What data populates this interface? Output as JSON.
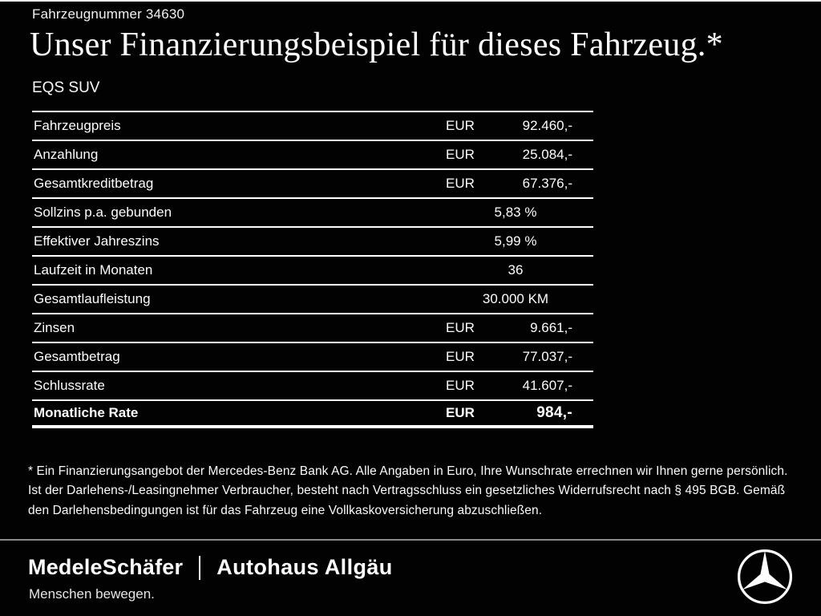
{
  "page": {
    "vehicle_number": "Fahrzeugnummer 34630",
    "title": "Unser Finanzierungsbeispiel für dieses Fahrzeug.*",
    "model": "EQS SUV"
  },
  "table": {
    "rows": [
      {
        "label": "Fahrzeugpreis",
        "currency": "EUR",
        "value": "92.460,-",
        "bold": false
      },
      {
        "label": "Anzahlung",
        "currency": "EUR",
        "value": "25.084,-",
        "bold": false
      },
      {
        "label": "Gesamtkreditbetrag",
        "currency": "EUR",
        "value": "67.376,-",
        "bold": false
      },
      {
        "label": "Sollzins p.a. gebunden",
        "currency": "",
        "value": "5,83 %",
        "bold": false
      },
      {
        "label": "Effektiver Jahreszins",
        "currency": "",
        "value": "5,99 %",
        "bold": false
      },
      {
        "label": "Laufzeit in Monaten",
        "currency": "",
        "value": "36",
        "bold": false
      },
      {
        "label": "Gesamtlaufleistung",
        "currency": "",
        "value": "30.000 KM",
        "bold": false
      },
      {
        "label": "Zinsen",
        "currency": "EUR",
        "value": "9.661,-",
        "bold": false
      },
      {
        "label": "Gesamtbetrag",
        "currency": "EUR",
        "value": "77.037,-",
        "bold": false
      },
      {
        "label": "Schlussrate",
        "currency": "EUR",
        "value": "41.607,-",
        "bold": false
      },
      {
        "label": "Monatliche Rate",
        "currency": "EUR",
        "value": "984,-",
        "bold": true
      }
    ]
  },
  "footnote": {
    "text": "* Ein Finanzierungsangebot der Mercedes-Benz Bank AG. Alle Angaben in Euro, Ihre Wunschrate errechnen wir Ihnen gerne persönlich. Ist der Darlehens-/Leasingnehmer Verbraucher, besteht nach Vertragsschluss ein gesetzliches Widerrufsrecht nach § 495 BGB. Gemäß den Darlehensbedingungen ist für das Fahrzeug eine Vollkaskoversicherung abzuschließen."
  },
  "footer": {
    "dealer1": "MedeleSchäfer",
    "dealer2": "Autohaus Allgäu",
    "tagline": "Menschen bewegen.",
    "logo_icon": "mercedes-star-icon"
  },
  "colors": {
    "background": "#000000",
    "text": "#ffffff",
    "table_lines": "#ffffff",
    "footer_divider": "#8a8a8a"
  }
}
